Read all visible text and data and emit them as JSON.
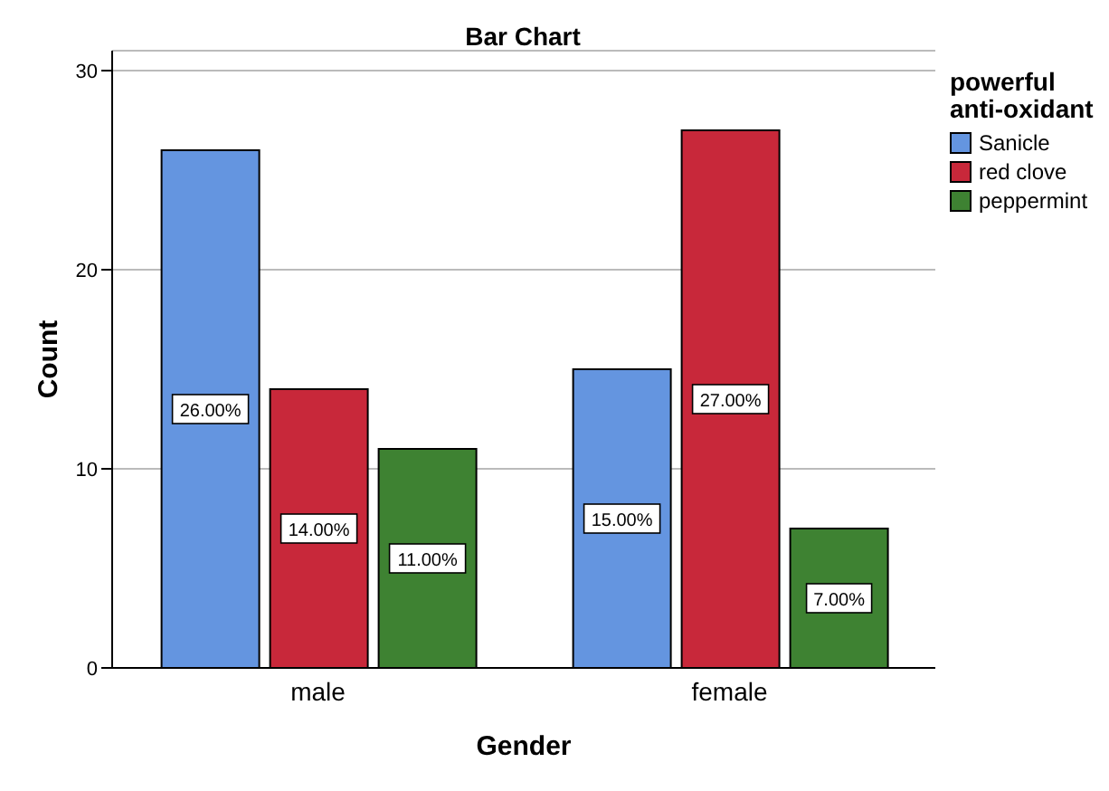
{
  "chart_data": {
    "type": "bar",
    "title": "Bar Chart",
    "xlabel": "Gender",
    "ylabel": "Count",
    "legend_title": "powerful anti-oxidant",
    "categories": [
      "male",
      "female"
    ],
    "series": [
      {
        "name": "Sanicle",
        "color": "#6495e0",
        "values": [
          26,
          15
        ],
        "value_labels": [
          "26.00%",
          "15.00%"
        ]
      },
      {
        "name": "red clove",
        "color": "#c8283a",
        "values": [
          14,
          27
        ],
        "value_labels": [
          "14.00%",
          "27.00%"
        ]
      },
      {
        "name": "peppermint",
        "color": "#3e8232",
        "values": [
          11,
          7
        ],
        "value_labels": [
          "11.00%",
          "7.00%"
        ]
      }
    ],
    "ylim": [
      0,
      31
    ],
    "yticks": [
      0,
      10,
      20,
      30
    ],
    "grid": "y",
    "legend": "top right"
  }
}
